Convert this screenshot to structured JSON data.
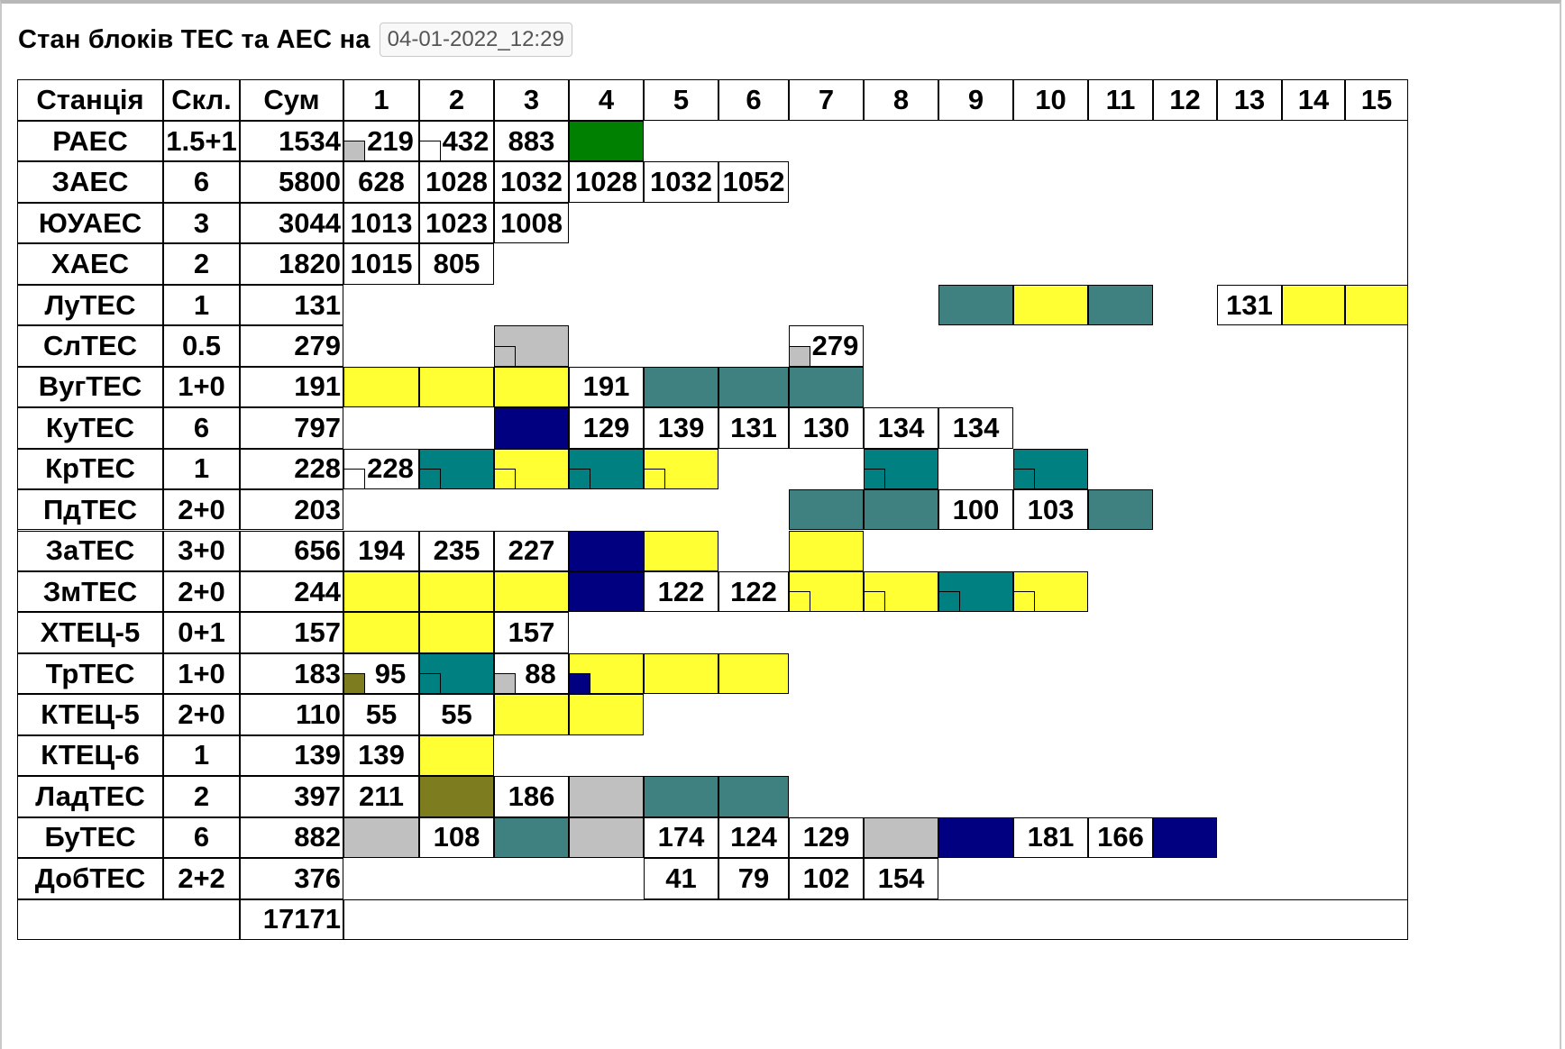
{
  "header": {
    "title": "Стан блоків ТЕС та АЕС на",
    "datetime": "04-01-2022_12:29"
  },
  "colors": {
    "yellow": "#ffff33",
    "teal": "#3f8080",
    "teal_bright": "#008080",
    "navy": "#000080",
    "gray": "#c0c0c0",
    "olive": "#7d7d1f",
    "green": "#008000"
  },
  "table": {
    "headers": {
      "station": "Станція",
      "composition": "Скл.",
      "sum": "Сум",
      "units": [
        "1",
        "2",
        "3",
        "4",
        "5",
        "6",
        "7",
        "8",
        "9",
        "10",
        "11",
        "12",
        "13",
        "14",
        "15"
      ]
    },
    "rows": [
      {
        "station": "РАЕС",
        "composition": "1.5+1",
        "sum": "1534",
        "cells": [
          {
            "u": 1,
            "v": "219",
            "q": "gray"
          },
          {
            "u": 2,
            "v": "432",
            "q": "white"
          },
          {
            "u": 3,
            "v": "883"
          },
          {
            "u": 4,
            "c": "green"
          }
        ]
      },
      {
        "station": "ЗАЕС",
        "composition": "6",
        "sum": "5800",
        "cells": [
          {
            "u": 1,
            "v": "628"
          },
          {
            "u": 2,
            "v": "1028"
          },
          {
            "u": 3,
            "v": "1032"
          },
          {
            "u": 4,
            "v": "1028"
          },
          {
            "u": 5,
            "v": "1032"
          },
          {
            "u": 6,
            "v": "1052"
          }
        ]
      },
      {
        "station": "ЮУАЕС",
        "composition": "3",
        "sum": "3044",
        "cells": [
          {
            "u": 1,
            "v": "1013"
          },
          {
            "u": 2,
            "v": "1023"
          },
          {
            "u": 3,
            "v": "1008"
          }
        ]
      },
      {
        "station": "ХАЕС",
        "composition": "2",
        "sum": "1820",
        "cells": [
          {
            "u": 1,
            "v": "1015"
          },
          {
            "u": 2,
            "v": "805"
          }
        ]
      },
      {
        "station": "ЛуТЕС",
        "composition": "1",
        "sum": "131",
        "cells": [
          {
            "u": 9,
            "c": "teal"
          },
          {
            "u": 10,
            "c": "yellow"
          },
          {
            "u": 11,
            "c": "teal"
          },
          {
            "u": 13,
            "v": "131"
          },
          {
            "u": 14,
            "c": "yellow"
          },
          {
            "u": 15,
            "c": "yellow"
          }
        ]
      },
      {
        "station": "СлТЕС",
        "composition": "0.5",
        "sum": "279",
        "cells": [
          {
            "u": 3,
            "c": "gray",
            "q": "gray"
          },
          {
            "u": 7,
            "v": "279",
            "q": "gray"
          }
        ]
      },
      {
        "station": "ВугТЕС",
        "composition": "1+0",
        "sum": "191",
        "cells": [
          {
            "u": 1,
            "c": "yellow"
          },
          {
            "u": 2,
            "c": "yellow"
          },
          {
            "u": 3,
            "c": "yellow"
          },
          {
            "u": 4,
            "v": "191"
          },
          {
            "u": 5,
            "c": "teal"
          },
          {
            "u": 6,
            "c": "teal"
          },
          {
            "u": 7,
            "c": "teal"
          }
        ]
      },
      {
        "station": "КуТЕС",
        "composition": "6",
        "sum": "797",
        "cells": [
          {
            "u": 3,
            "c": "navy"
          },
          {
            "u": 4,
            "v": "129"
          },
          {
            "u": 5,
            "v": "139"
          },
          {
            "u": 6,
            "v": "131"
          },
          {
            "u": 7,
            "v": "130"
          },
          {
            "u": 8,
            "v": "134"
          },
          {
            "u": 9,
            "v": "134"
          }
        ]
      },
      {
        "station": "КрТЕС",
        "composition": "1",
        "sum": "228",
        "cells": [
          {
            "u": 1,
            "v": "228",
            "q": "white"
          },
          {
            "u": 2,
            "c": "teal_bright",
            "q": "teal_bright"
          },
          {
            "u": 3,
            "c": "yellow",
            "q": "yellow"
          },
          {
            "u": 4,
            "c": "teal_bright",
            "q": "teal_bright"
          },
          {
            "u": 5,
            "c": "yellow",
            "q": "yellow"
          },
          {
            "u": 8,
            "c": "teal_bright",
            "q": "teal_bright"
          },
          {
            "u": 10,
            "c": "teal_bright",
            "q": "teal_bright"
          }
        ]
      },
      {
        "station": "ПдТЕС",
        "composition": "2+0",
        "sum": "203",
        "cells": [
          {
            "u": 7,
            "c": "teal"
          },
          {
            "u": 8,
            "c": "teal"
          },
          {
            "u": 9,
            "v": "100"
          },
          {
            "u": 10,
            "v": "103"
          },
          {
            "u": 11,
            "c": "teal"
          }
        ]
      },
      {
        "station": "ЗаТЕС",
        "composition": "3+0",
        "sum": "656",
        "cells": [
          {
            "u": 1,
            "v": "194"
          },
          {
            "u": 2,
            "v": "235"
          },
          {
            "u": 3,
            "v": "227"
          },
          {
            "u": 4,
            "c": "navy"
          },
          {
            "u": 5,
            "c": "yellow"
          },
          {
            "u": 7,
            "c": "yellow"
          }
        ]
      },
      {
        "station": "ЗмТЕС",
        "composition": "2+0",
        "sum": "244",
        "cells": [
          {
            "u": 1,
            "c": "yellow"
          },
          {
            "u": 2,
            "c": "yellow"
          },
          {
            "u": 3,
            "c": "yellow"
          },
          {
            "u": 4,
            "c": "navy"
          },
          {
            "u": 5,
            "v": "122"
          },
          {
            "u": 6,
            "v": "122"
          },
          {
            "u": 7,
            "c": "yellow",
            "q": "yellow"
          },
          {
            "u": 8,
            "c": "yellow",
            "q": "yellow"
          },
          {
            "u": 9,
            "c": "teal_bright",
            "q": "teal_bright"
          },
          {
            "u": 10,
            "c": "yellow",
            "q": "yellow"
          }
        ]
      },
      {
        "station": "ХТЕЦ-5",
        "composition": "0+1",
        "sum": "157",
        "cells": [
          {
            "u": 1,
            "c": "yellow"
          },
          {
            "u": 2,
            "c": "yellow"
          },
          {
            "u": 3,
            "v": "157"
          }
        ]
      },
      {
        "station": "ТрТЕС",
        "composition": "1+0",
        "sum": "183",
        "cells": [
          {
            "u": 1,
            "v": "95",
            "q": "olive"
          },
          {
            "u": 2,
            "c": "teal_bright",
            "q": "teal_bright"
          },
          {
            "u": 3,
            "v": "88",
            "q": "gray"
          },
          {
            "u": 4,
            "c": "yellow",
            "q": "navy"
          },
          {
            "u": 5,
            "c": "yellow"
          },
          {
            "u": 6,
            "c": "yellow"
          }
        ]
      },
      {
        "station": "КТЕЦ-5",
        "composition": "2+0",
        "sum": "110",
        "cells": [
          {
            "u": 1,
            "v": "55"
          },
          {
            "u": 2,
            "v": "55"
          },
          {
            "u": 3,
            "c": "yellow"
          },
          {
            "u": 4,
            "c": "yellow"
          }
        ]
      },
      {
        "station": "КТЕЦ-6",
        "composition": "1",
        "sum": "139",
        "cells": [
          {
            "u": 1,
            "v": "139"
          },
          {
            "u": 2,
            "c": "yellow"
          }
        ]
      },
      {
        "station": "ЛадТЕС",
        "composition": "2",
        "sum": "397",
        "cells": [
          {
            "u": 1,
            "v": "211"
          },
          {
            "u": 2,
            "c": "olive"
          },
          {
            "u": 3,
            "v": "186"
          },
          {
            "u": 4,
            "c": "gray"
          },
          {
            "u": 5,
            "c": "teal"
          },
          {
            "u": 6,
            "c": "teal"
          }
        ]
      },
      {
        "station": "БуТЕС",
        "composition": "6",
        "sum": "882",
        "cells": [
          {
            "u": 1,
            "c": "gray"
          },
          {
            "u": 2,
            "v": "108"
          },
          {
            "u": 3,
            "c": "teal"
          },
          {
            "u": 4,
            "c": "gray"
          },
          {
            "u": 5,
            "v": "174"
          },
          {
            "u": 6,
            "v": "124"
          },
          {
            "u": 7,
            "v": "129"
          },
          {
            "u": 8,
            "c": "gray"
          },
          {
            "u": 9,
            "c": "navy"
          },
          {
            "u": 10,
            "v": "181"
          },
          {
            "u": 11,
            "v": "166"
          },
          {
            "u": 12,
            "c": "navy"
          }
        ]
      },
      {
        "station": "ДобТЕС",
        "composition": "2+2",
        "sum": "376",
        "cells": [
          {
            "u": 5,
            "v": "41"
          },
          {
            "u": 6,
            "v": "79"
          },
          {
            "u": 7,
            "v": "102"
          },
          {
            "u": 8,
            "v": "154"
          }
        ]
      }
    ],
    "total": "17171"
  }
}
